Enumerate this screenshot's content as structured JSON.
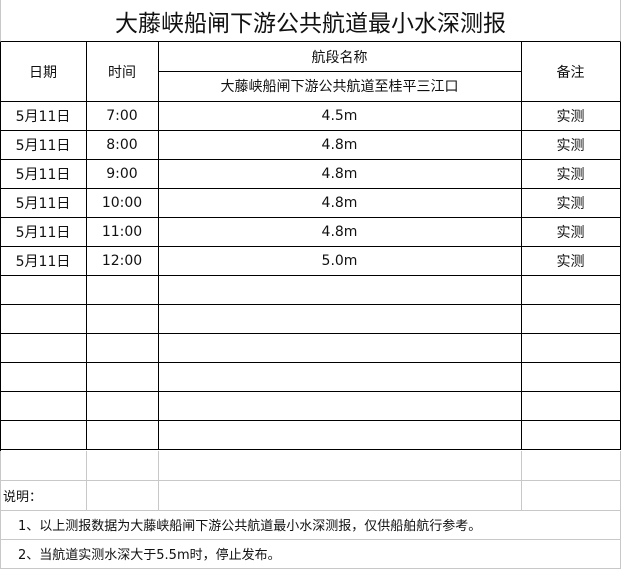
{
  "title": "大藤峡船闸下游公共航道最小水深测报",
  "headers": {
    "date": "日期",
    "time": "时间",
    "section_label": "航段名称",
    "section_name": "大藤峡船闸下游公共航道至桂平三江口",
    "remark": "备注"
  },
  "rows": [
    {
      "date": "5月11日",
      "time": "7:00",
      "depth": "4.5m",
      "remark": "实测"
    },
    {
      "date": "5月11日",
      "time": "8:00",
      "depth": "4.8m",
      "remark": "实测"
    },
    {
      "date": "5月11日",
      "time": "9:00",
      "depth": "4.8m",
      "remark": "实测"
    },
    {
      "date": "5月11日",
      "time": "10:00",
      "depth": "4.8m",
      "remark": "实测"
    },
    {
      "date": "5月11日",
      "time": "11:00",
      "depth": "4.8m",
      "remark": "实测"
    },
    {
      "date": "5月11日",
      "time": "12:00",
      "depth": "5.0m",
      "remark": "实测"
    }
  ],
  "notes": {
    "label": "说明：",
    "items": [
      "1、以上测报数据为大藤峡船闸下游公共航道最小水深测报，仅供船舶航行参考。",
      "2、当航道实测水深大于5.5m时，停止发布。"
    ]
  }
}
